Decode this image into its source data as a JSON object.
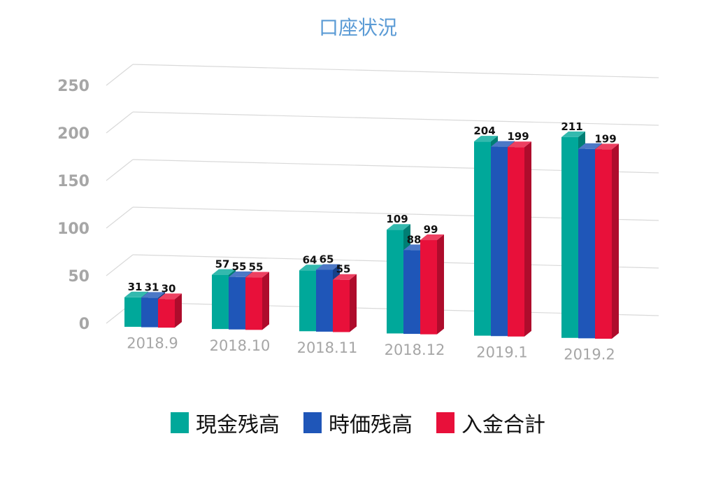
{
  "chart_data": {
    "type": "bar",
    "title": "口座状況",
    "categories": [
      "2018.9",
      "2018.10",
      "2018.11",
      "2018.12",
      "2019.1",
      "2019.2"
    ],
    "series": [
      {
        "name": "現金残高",
        "color": "#00a89a",
        "values": [
          31,
          57,
          64,
          109,
          204,
          211
        ]
      },
      {
        "name": "時価残高",
        "color": "#1f56b8",
        "values": [
          31,
          55,
          65,
          88,
          199,
          199
        ]
      },
      {
        "name": "入金合計",
        "color": "#e8103a",
        "values": [
          30,
          55,
          55,
          99,
          199,
          199
        ]
      }
    ],
    "data_labels": [
      [
        "31",
        "57",
        "64",
        "109",
        "204",
        "211"
      ],
      [
        "31",
        "55",
        "65",
        "88",
        "",
        ""
      ],
      [
        "30",
        "55",
        "55",
        "99",
        "199",
        "199"
      ]
    ],
    "y_ticks": [
      "0",
      "50",
      "100",
      "150",
      "200",
      "250"
    ],
    "y_tick_values": [
      0,
      50,
      100,
      150,
      200,
      250
    ],
    "ylim": [
      0,
      250
    ],
    "xlabel": "",
    "ylabel": "",
    "grid": true,
    "legend_position": "bottom",
    "style": "3d-column",
    "axis_color": "#999999",
    "title_color": "#5b9bd5"
  }
}
